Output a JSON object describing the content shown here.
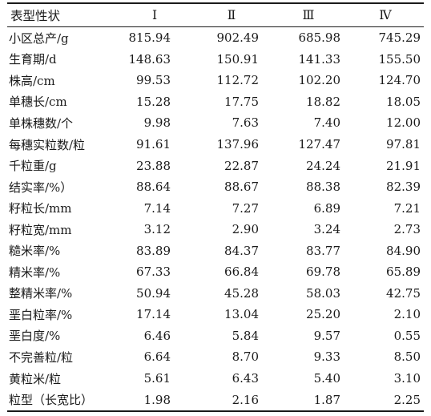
{
  "table": {
    "header": [
      "表型性状",
      "Ⅰ",
      "Ⅱ",
      "Ⅲ",
      "Ⅳ"
    ],
    "rows": [
      {
        "trait": "小区总产/g",
        "v": [
          "815.94",
          "902.49",
          "685.98",
          "745.29"
        ]
      },
      {
        "trait": "生育期/d",
        "v": [
          "148.63",
          "150.91",
          "141.33",
          "155.50"
        ]
      },
      {
        "trait": "株高/cm",
        "v": [
          "99.53",
          "112.72",
          "102.20",
          "124.70"
        ]
      },
      {
        "trait": "单穗长/cm",
        "v": [
          "15.28",
          "17.75",
          "18.82",
          "18.05"
        ]
      },
      {
        "trait": "单株穗数/个",
        "v": [
          "9.98",
          "7.63",
          "7.40",
          "12.00"
        ]
      },
      {
        "trait": "每穗实粒数/粒",
        "v": [
          "91.61",
          "137.96",
          "127.47",
          "97.81"
        ]
      },
      {
        "trait": "千粒重/g",
        "v": [
          "23.88",
          "22.87",
          "24.24",
          "21.91"
        ]
      },
      {
        "trait": "结实率/%）",
        "v": [
          "88.64",
          "88.67",
          "88.38",
          "82.39"
        ]
      },
      {
        "trait": "籽粒长/mm",
        "v": [
          "7.14",
          "7.27",
          "6.89",
          "7.21"
        ]
      },
      {
        "trait": "籽粒宽/mm",
        "v": [
          "3.12",
          "2.90",
          "3.24",
          "2.73"
        ]
      },
      {
        "trait": "糙米率/%",
        "v": [
          "83.89",
          "84.37",
          "83.77",
          "84.90"
        ]
      },
      {
        "trait": "精米率/%",
        "v": [
          "67.33",
          "66.84",
          "69.78",
          "65.89"
        ]
      },
      {
        "trait": "整精米率/%",
        "v": [
          "50.94",
          "45.28",
          "58.03",
          "42.75"
        ]
      },
      {
        "trait": "垩白粒率/%",
        "v": [
          "17.14",
          "13.04",
          "25.20",
          "2.10"
        ]
      },
      {
        "trait": "垩白度/%",
        "v": [
          "6.46",
          "5.84",
          "9.57",
          "0.55"
        ]
      },
      {
        "trait": "不完善粒/粒",
        "v": [
          "6.64",
          "8.70",
          "9.33",
          "8.50"
        ]
      },
      {
        "trait": "黄粒米/粒",
        "v": [
          "5.61",
          "6.43",
          "5.40",
          "3.10"
        ]
      },
      {
        "trait": "粒型（长宽比）",
        "v": [
          "1.98",
          "2.16",
          "1.87",
          "2.25"
        ]
      }
    ]
  }
}
